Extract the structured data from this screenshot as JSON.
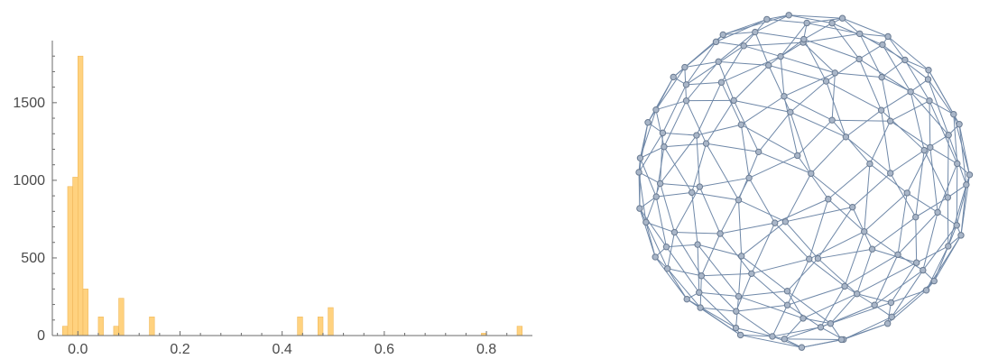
{
  "colors": {
    "bar": "#ffd27f",
    "bar_edge": "#f0b85a",
    "axis": "#6b6b6b",
    "edge": "#6f88a8",
    "vertex_fill": "#a9b6c8",
    "vertex_stroke": "#6a7b92"
  },
  "chart_data": [
    {
      "type": "bar",
      "bin_width": 0.01,
      "bins": [
        {
          "x0": -0.03,
          "value": 60
        },
        {
          "x0": -0.02,
          "value": 960
        },
        {
          "x0": -0.01,
          "value": 1020
        },
        {
          "x0": 0.0,
          "value": 1800
        },
        {
          "x0": 0.01,
          "value": 300
        },
        {
          "x0": 0.04,
          "value": 120
        },
        {
          "x0": 0.07,
          "value": 60
        },
        {
          "x0": 0.08,
          "value": 240
        },
        {
          "x0": 0.14,
          "value": 120
        },
        {
          "x0": 0.43,
          "value": 120
        },
        {
          "x0": 0.47,
          "value": 120
        },
        {
          "x0": 0.49,
          "value": 180
        },
        {
          "x0": 0.79,
          "value": 15
        },
        {
          "x0": 0.86,
          "value": 60
        }
      ],
      "x_ticks": [
        0.0,
        0.2,
        0.4,
        0.6,
        0.8
      ],
      "x_tick_labels": [
        "0.0",
        "0.2",
        "0.4",
        "0.6",
        "0.8"
      ],
      "y_ticks": [
        0,
        500,
        1000,
        1500
      ],
      "y_tick_labels": [
        "0",
        "500",
        "1000",
        "1500"
      ],
      "xlim": [
        -0.05,
        0.89
      ],
      "ylim": [
        0,
        1900
      ],
      "title": "",
      "xlabel": "",
      "ylabel": "",
      "grid": false
    }
  ],
  "network": {
    "type": "geodesic-sphere-graph",
    "vertex_count": 120
  }
}
